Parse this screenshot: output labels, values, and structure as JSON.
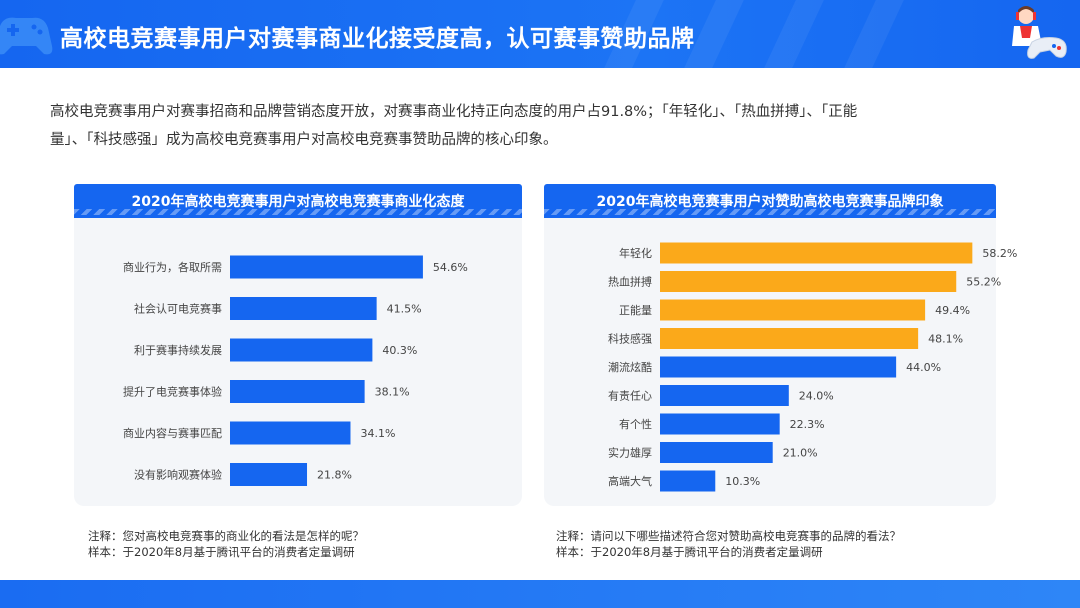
{
  "header": {
    "title": "高校电竞赛事用户对赛事商业化接受度高，认可赛事赞助品牌"
  },
  "intro": {
    "line1": "高校电竞赛事用户对赛事招商和品牌营销态度开放，对赛事商业化持正向态度的用户占91.8%；「年轻化」、「热血拼搏」、「正能",
    "line2": "量」、「科技感强」成为高校电竞赛事用户对高校电竞赛事赞助品牌的核心印象。"
  },
  "colors": {
    "primary_blue": "#1566f0",
    "highlight_orange": "#fba91a",
    "panel_bg": "#f4f6f9"
  },
  "chart_data": [
    {
      "type": "bar",
      "orientation": "horizontal",
      "title": "2020年高校电竞赛事用户对高校电竞赛事商业化态度",
      "categories": [
        "商业行为，各取所需",
        "社会认可电竞赛事",
        "利于赛事持续发展",
        "提升了电竞赛事体验",
        "商业内容与赛事匹配",
        "没有影响观赛体验"
      ],
      "values": [
        54.6,
        41.5,
        40.3,
        38.1,
        34.1,
        21.8
      ],
      "value_labels": [
        "54.6%",
        "41.5%",
        "40.3%",
        "38.1%",
        "34.1%",
        "21.8%"
      ],
      "value_unit": "%",
      "xlim": [
        0,
        60
      ],
      "colors": [
        "#1566f0",
        "#1566f0",
        "#1566f0",
        "#1566f0",
        "#1566f0",
        "#1566f0"
      ],
      "grid": false,
      "legend": "none"
    },
    {
      "type": "bar",
      "orientation": "horizontal",
      "title": "2020年高校电竞赛事用户对赞助高校电竞赛事品牌印象",
      "categories": [
        "年轻化",
        "热血拼搏",
        "正能量",
        "科技感强",
        "潮流炫酷",
        "有责任心",
        "有个性",
        "实力雄厚",
        "高端大气"
      ],
      "values": [
        58.2,
        55.2,
        49.4,
        48.1,
        44.0,
        24.0,
        22.3,
        21.0,
        10.3
      ],
      "value_labels": [
        "58.2%",
        "55.2%",
        "49.4%",
        "48.1%",
        "44.0%",
        "24.0%",
        "22.3%",
        "21.0%",
        "10.3%"
      ],
      "value_unit": "%",
      "xlim": [
        0,
        60
      ],
      "colors": [
        "#fba91a",
        "#fba91a",
        "#fba91a",
        "#fba91a",
        "#1566f0",
        "#1566f0",
        "#1566f0",
        "#1566f0",
        "#1566f0"
      ],
      "grid": false,
      "legend": "none"
    }
  ],
  "notes": {
    "left": {
      "question": "注释：您对高校电竞赛事的商业化的看法是怎样的呢？",
      "sample": "样本：于2020年8月基于腾讯平台的消费者定量调研"
    },
    "right": {
      "question": "注释：请问以下哪些描述符合您对赞助高校电竞赛事的品牌的看法？",
      "sample": "样本：于2020年8月基于腾讯平台的消费者定量调研"
    }
  }
}
